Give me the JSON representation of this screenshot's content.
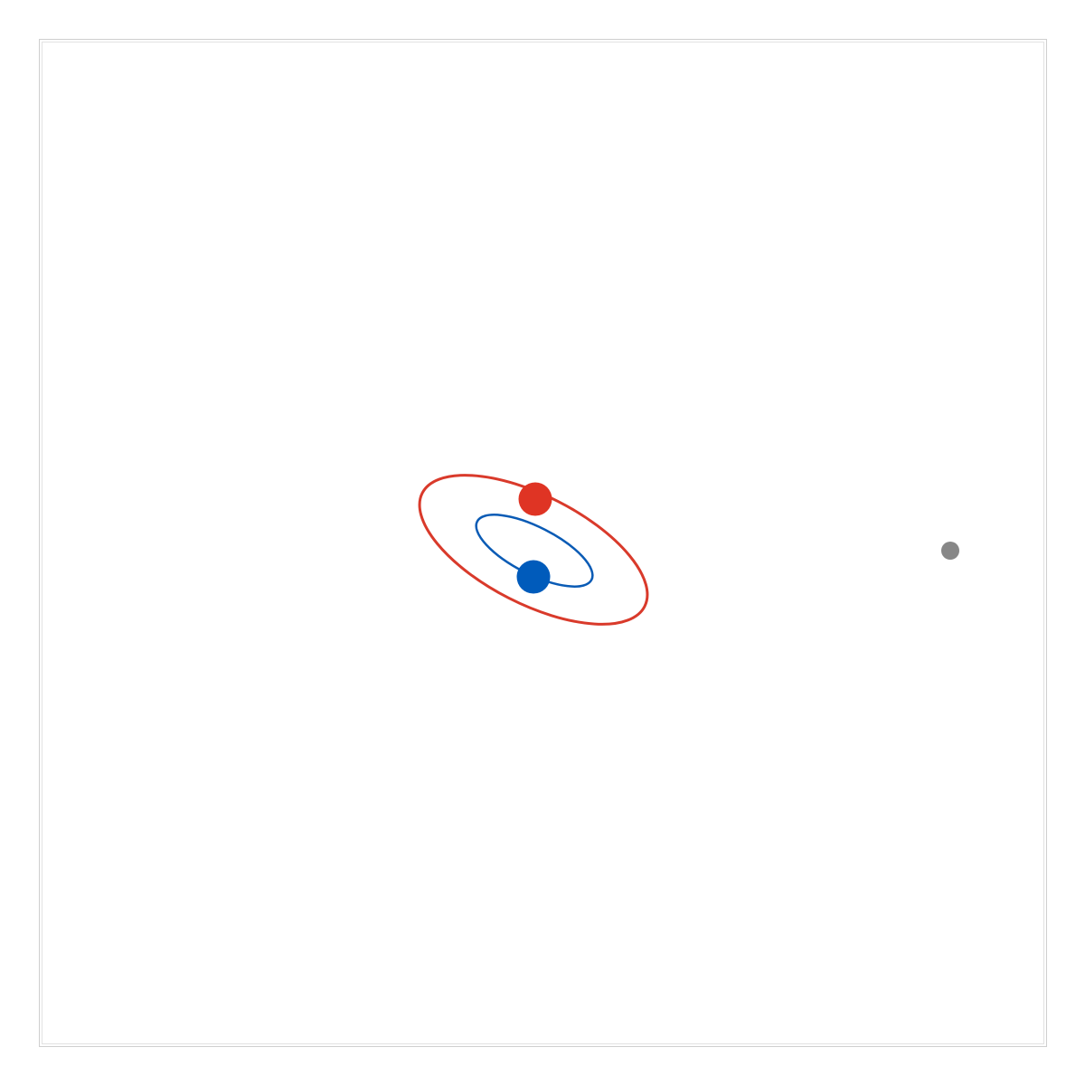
{
  "diagram": {
    "type": "binary-star-orbit",
    "background_color": "#ffffff",
    "frame_color": "#cfcfcf",
    "orbits": [
      {
        "name": "outer-orbit",
        "color": "#d93a2b"
      },
      {
        "name": "inner-orbit",
        "color": "#0a5bb5"
      }
    ],
    "bodies": [
      {
        "name": "red-star",
        "color": "#df3424"
      },
      {
        "name": "blue-star",
        "color": "#005bbb"
      },
      {
        "name": "distant-body",
        "color": "#878787"
      }
    ]
  }
}
